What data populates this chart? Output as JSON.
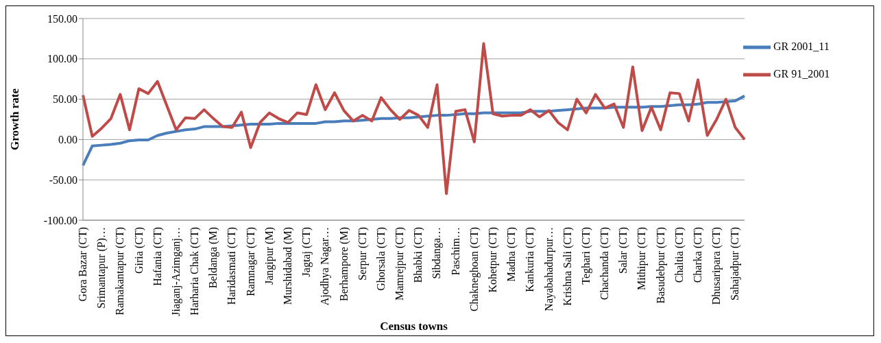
{
  "chart_data": {
    "type": "line",
    "xlabel": "Census towns",
    "ylabel": "Growth rate",
    "categories": [
      "Gora Bazar (CT)",
      null,
      "Srimantapur (P)…",
      null,
      "Ramakantapur (CT)",
      null,
      "Giria (CT)",
      null,
      "Hafania (CT)",
      null,
      "Jiaganj-Azimganj…",
      null,
      "Harharia Chak (CT)",
      null,
      "Beldanga (M)",
      null,
      "Haridasmati (CT)",
      null,
      "Ramnagar (CT)",
      null,
      "Jangipur (M)",
      null,
      "Murshidabad (M)",
      null,
      "Jagtaj (CT)",
      null,
      "Ajodhya Nagar…",
      null,
      "Berhampore (M)",
      null,
      "Serpur (CT)",
      null,
      "Ghorsala (CT)",
      null,
      "Mamrejpur (CT)",
      null,
      "Bhabki (CT)",
      null,
      "Sibdanga…",
      null,
      "Paschim…",
      null,
      "Chakneghoan (CT)",
      null,
      "Kohetpur (CT)",
      null,
      "Madna (CT)",
      null,
      "Kankuria (CT)",
      null,
      "Nayabahadurpur…",
      null,
      "Krishna Sali (CT)",
      null,
      "Teghari (CT)",
      null,
      "Chachanda (CT)",
      null,
      "Salar (CT)",
      null,
      "Mithipur (CT)",
      null,
      "Basudebpur (CT)",
      null,
      "Chaltia (CT)",
      null,
      "Charka (CT)",
      null,
      "Dhusaripara (CT)",
      null,
      "Sahajadpur (CT)",
      null
    ],
    "series": [
      {
        "name": "GR 2001_11",
        "color": "#4a7ebb",
        "values": [
          -32,
          -8,
          -7,
          -6,
          -4.5,
          -1.5,
          -0.5,
          -0.5,
          5,
          8,
          10,
          12,
          13,
          16,
          16,
          16,
          17,
          18,
          19,
          19,
          19,
          20,
          20,
          20,
          20,
          20,
          22,
          22,
          23,
          23,
          24,
          25,
          26,
          26,
          27,
          27,
          28,
          29,
          30,
          30,
          31,
          32,
          32,
          33,
          33,
          33,
          33,
          33,
          35,
          35,
          35,
          36,
          37,
          38,
          39,
          39,
          39,
          40,
          40,
          40,
          40,
          41,
          41,
          42,
          43,
          43,
          44,
          46,
          46,
          47,
          48,
          54
        ]
      },
      {
        "name": "GR 91_2001",
        "color": "#be4b48",
        "values": [
          55,
          4,
          14,
          26,
          56,
          12,
          63,
          57,
          72,
          42,
          12,
          27,
          26,
          37,
          26,
          16,
          15,
          34,
          -10,
          21,
          33,
          26,
          21,
          33,
          31,
          68,
          37,
          58,
          36,
          23,
          30,
          23,
          52,
          37,
          25,
          36,
          30,
          15,
          68,
          -67,
          35,
          37,
          -3,
          119,
          32,
          29,
          30,
          30,
          37,
          28,
          36,
          21,
          12,
          50,
          33,
          56,
          39,
          44,
          15,
          90,
          11,
          40,
          12,
          58,
          57,
          23,
          74,
          5,
          25,
          50,
          15,
          0
        ]
      }
    ],
    "ylim": [
      -100,
      150
    ],
    "yticks": [
      {
        "value": -100,
        "label": "-100.00"
      },
      {
        "value": -50,
        "label": "-50.00"
      },
      {
        "value": 0,
        "label": "0.00"
      },
      {
        "value": 50,
        "label": "50.00"
      },
      {
        "value": 100,
        "label": "100.00"
      },
      {
        "value": 150,
        "label": "150.00"
      }
    ],
    "grid": "y",
    "legend": "top right",
    "marker": "none",
    "line_style": "solid"
  }
}
